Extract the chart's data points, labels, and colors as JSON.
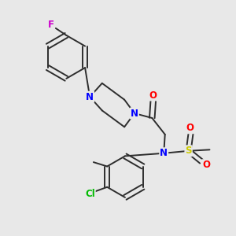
{
  "background_color": "#e8e8e8",
  "bond_color": "#2d2d2d",
  "atom_colors": {
    "N": "#0000ff",
    "O": "#ff0000",
    "F": "#cc00cc",
    "Cl": "#00bb00",
    "S": "#cccc00",
    "C": "#2d2d2d"
  },
  "font_size_atoms": 8.5,
  "figsize": [
    3.0,
    3.0
  ],
  "dpi": 100,
  "xlim": [
    0.0,
    1.0
  ],
  "ylim": [
    0.0,
    1.0
  ]
}
